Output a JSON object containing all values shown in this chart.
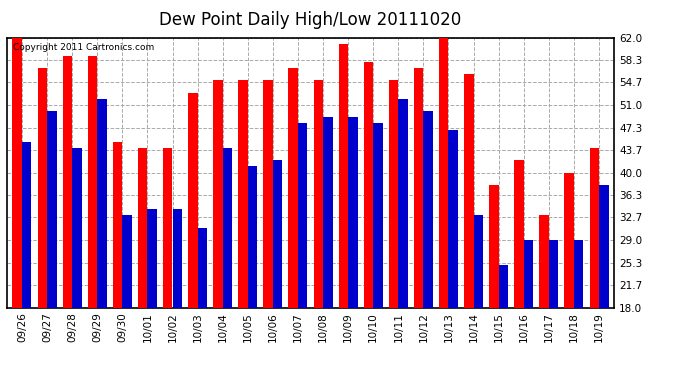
{
  "title": "Dew Point Daily High/Low 20111020",
  "copyright": "Copyright 2011 Cartronics.com",
  "categories": [
    "09/26",
    "09/27",
    "09/28",
    "09/29",
    "09/30",
    "10/01",
    "10/02",
    "10/03",
    "10/04",
    "10/05",
    "10/06",
    "10/07",
    "10/08",
    "10/09",
    "10/10",
    "10/11",
    "10/12",
    "10/13",
    "10/14",
    "10/15",
    "10/16",
    "10/17",
    "10/18",
    "10/19"
  ],
  "highs": [
    62,
    57,
    59,
    59,
    45,
    44,
    44,
    53,
    55,
    55,
    55,
    57,
    55,
    61,
    58,
    55,
    57,
    62,
    56,
    38,
    42,
    33,
    40,
    44
  ],
  "lows": [
    45,
    50,
    44,
    52,
    33,
    34,
    34,
    31,
    44,
    41,
    42,
    48,
    49,
    49,
    48,
    52,
    50,
    47,
    33,
    25,
    29,
    29,
    29,
    38
  ],
  "ymin": 18.0,
  "ymax": 62.0,
  "yticks": [
    18.0,
    21.7,
    25.3,
    29.0,
    32.7,
    36.3,
    40.0,
    43.7,
    47.3,
    51.0,
    54.7,
    58.3,
    62.0
  ],
  "bar_width": 0.38,
  "high_color": "#ff0000",
  "low_color": "#0000cc",
  "bg_color": "#ffffff",
  "grid_color": "#aaaaaa",
  "title_fontsize": 12,
  "tick_fontsize": 7.5,
  "copyright_fontsize": 6.5
}
